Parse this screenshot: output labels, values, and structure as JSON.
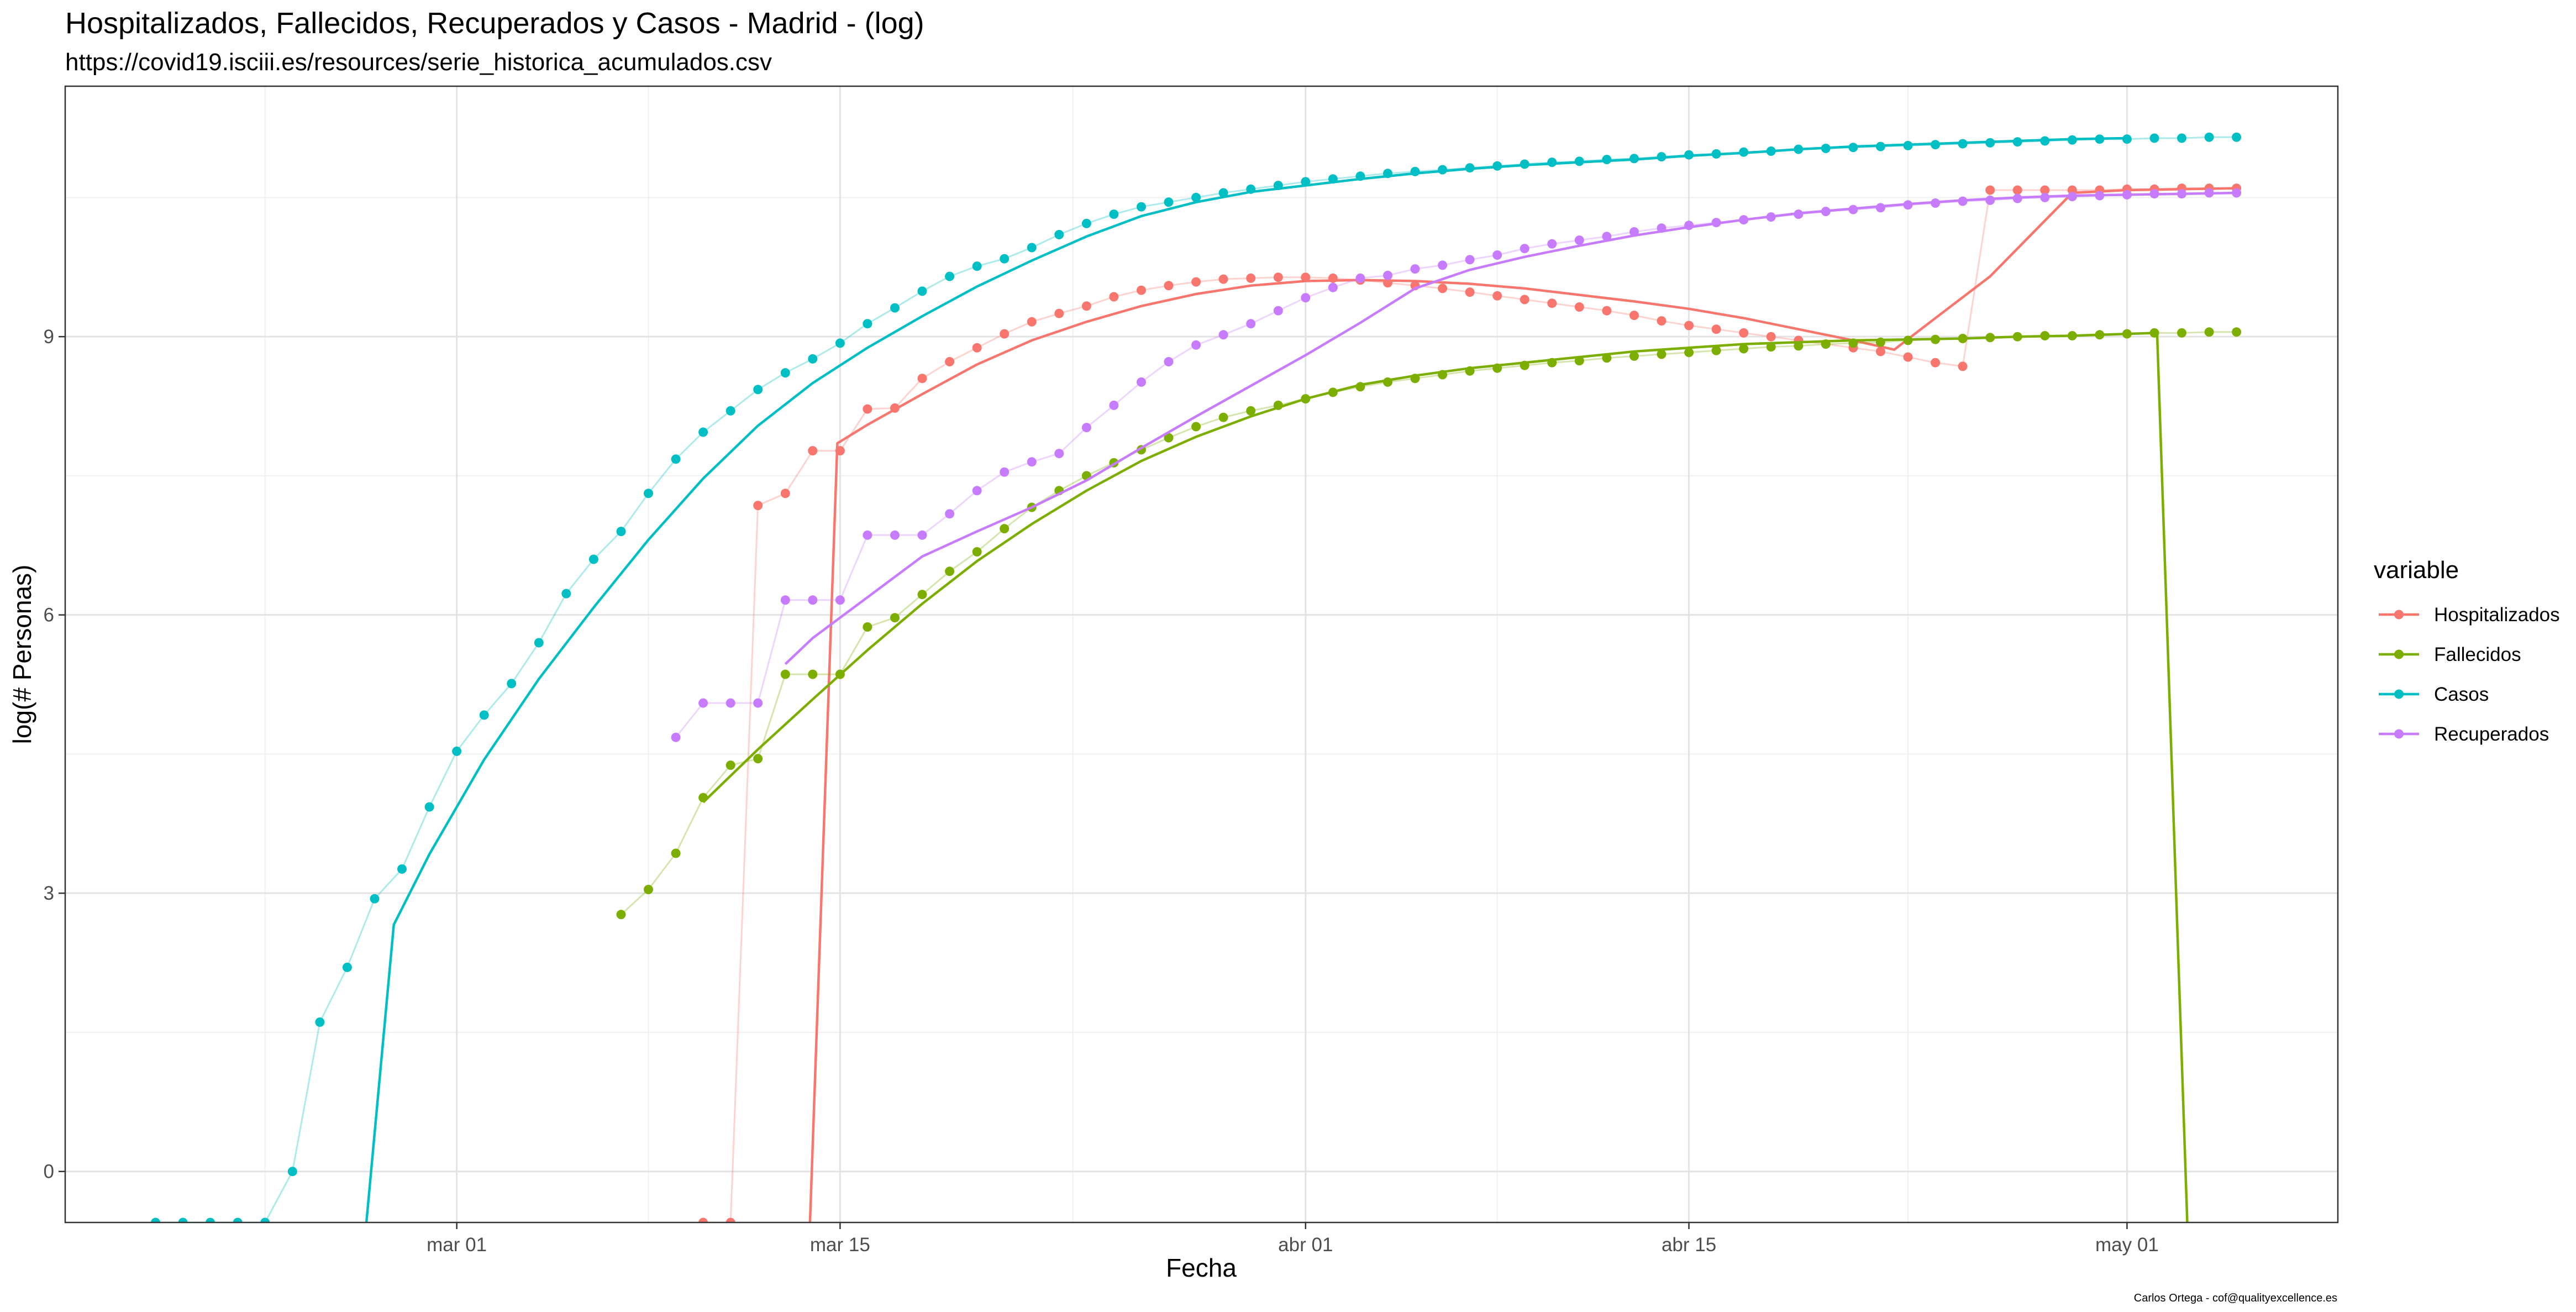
{
  "chart_data": {
    "type": "line",
    "title": "Hospitalizados, Fallecidos, Recuperados y Casos - Madrid - (log)",
    "subtitle": "https://covid19.isciii.es/resources/serie_historica_acumulados.csv",
    "xlabel": "Fecha",
    "ylabel": "log(# Personas)",
    "caption": "Carlos Ortega - cof@qualityexcellence.es",
    "x_ticks": [
      {
        "day": 29,
        "label": "mar 01"
      },
      {
        "day": 43,
        "label": "mar 15"
      },
      {
        "day": 60,
        "label": "abr 01"
      },
      {
        "day": 74,
        "label": "abr 15"
      },
      {
        "day": 90,
        "label": "may 01"
      }
    ],
    "y_ticks": [
      0,
      3,
      6,
      9
    ],
    "xlim_days": [
      14.7,
      97.7
    ],
    "ylim": [
      -0.55,
      11.7
    ],
    "legend": {
      "title": "variable",
      "position": "right"
    },
    "x_day_origin": "2020-01-31",
    "series": [
      {
        "name": "Hospitalizados",
        "color": "#F8766D",
        "x_days": [
          38,
          39,
          40,
          41,
          42,
          43,
          44,
          45,
          46,
          47,
          48,
          49,
          50,
          51,
          52,
          53,
          54,
          55,
          56,
          57,
          58,
          59,
          60,
          61,
          62,
          63,
          64,
          65,
          66,
          67,
          68,
          69,
          70,
          71,
          72,
          73,
          74,
          75,
          76,
          77,
          78,
          79,
          80,
          81,
          82,
          83,
          84,
          85,
          86,
          87,
          88,
          89,
          90,
          91,
          92,
          93,
          94
        ],
        "values": [
          -0.55,
          -0.55,
          7.18,
          7.31,
          7.77,
          7.77,
          8.22,
          8.23,
          8.55,
          8.73,
          8.88,
          9.03,
          9.16,
          9.25,
          9.33,
          9.43,
          9.5,
          9.55,
          9.59,
          9.62,
          9.63,
          9.64,
          9.64,
          9.63,
          9.61,
          9.58,
          9.55,
          9.52,
          9.48,
          9.44,
          9.4,
          9.36,
          9.32,
          9.28,
          9.23,
          9.17,
          9.12,
          9.08,
          9.04,
          9.0,
          8.96,
          8.92,
          8.88,
          8.84,
          8.78,
          8.72,
          8.68,
          10.58,
          10.58,
          10.58,
          10.58,
          10.58,
          10.59,
          10.59,
          10.6,
          10.6,
          10.6
        ],
        "smooth_x": [
          41.9,
          42.9,
          44,
          46,
          48,
          50,
          52,
          54,
          56,
          58,
          60,
          62,
          64,
          66,
          68,
          70,
          72,
          74,
          76,
          78,
          80,
          81.5,
          83,
          85,
          86.5,
          88,
          90,
          92,
          94
        ],
        "smooth_y": [
          -0.55,
          7.85,
          8.05,
          8.38,
          8.7,
          8.96,
          9.16,
          9.33,
          9.46,
          9.55,
          9.6,
          9.61,
          9.6,
          9.57,
          9.52,
          9.45,
          9.38,
          9.3,
          9.2,
          9.08,
          8.96,
          8.86,
          9.2,
          9.65,
          10.1,
          10.55,
          10.58,
          10.59,
          10.6
        ]
      },
      {
        "name": "Fallecidos",
        "color": "#7CAE00",
        "x_days": [
          35,
          36,
          37,
          38,
          39,
          40,
          41,
          42,
          43,
          44,
          45,
          46,
          47,
          48,
          49,
          50,
          51,
          52,
          53,
          54,
          55,
          56,
          57,
          58,
          59,
          60,
          61,
          62,
          63,
          64,
          65,
          66,
          67,
          68,
          69,
          70,
          71,
          72,
          73,
          74,
          75,
          76,
          77,
          78,
          79,
          80,
          81,
          82,
          83,
          84,
          85,
          86,
          87,
          88,
          89,
          90,
          91,
          92,
          93,
          94
        ],
        "values": [
          2.77,
          3.04,
          3.43,
          4.03,
          4.38,
          4.45,
          5.36,
          5.36,
          5.36,
          5.87,
          5.97,
          6.22,
          6.47,
          6.68,
          6.93,
          7.16,
          7.34,
          7.5,
          7.64,
          7.78,
          7.91,
          8.03,
          8.13,
          8.2,
          8.26,
          8.33,
          8.4,
          8.46,
          8.51,
          8.55,
          8.59,
          8.63,
          8.66,
          8.69,
          8.72,
          8.74,
          8.77,
          8.79,
          8.81,
          8.83,
          8.85,
          8.87,
          8.89,
          8.9,
          8.92,
          8.93,
          8.94,
          8.96,
          8.97,
          8.98,
          8.99,
          9.0,
          9.01,
          9.01,
          9.02,
          9.03,
          9.04,
          9.04,
          9.05,
          9.05
        ],
        "smooth_x": [
          38,
          40,
          42,
          44,
          46,
          48,
          50,
          52,
          54,
          56,
          58,
          60,
          62,
          64,
          66,
          68,
          70,
          72,
          74,
          76,
          78,
          80,
          82,
          84,
          86,
          88,
          90,
          91.1,
          92.2
        ],
        "smooth_y": [
          3.98,
          4.55,
          5.09,
          5.62,
          6.12,
          6.58,
          6.98,
          7.34,
          7.66,
          7.92,
          8.14,
          8.33,
          8.48,
          8.58,
          8.66,
          8.72,
          8.78,
          8.84,
          8.88,
          8.92,
          8.94,
          8.96,
          8.97,
          8.98,
          9.0,
          9.01,
          9.03,
          9.04,
          -0.55
        ]
      },
      {
        "name": "Casos",
        "color": "#00BFC4",
        "x_days": [
          18,
          19,
          20,
          21,
          22,
          23,
          24,
          25,
          26,
          27,
          28,
          29,
          30,
          31,
          32,
          33,
          34,
          35,
          36,
          37,
          38,
          39,
          40,
          41,
          42,
          43,
          44,
          45,
          46,
          47,
          48,
          49,
          50,
          51,
          52,
          53,
          54,
          55,
          56,
          57,
          58,
          59,
          60,
          61,
          62,
          63,
          64,
          65,
          66,
          67,
          68,
          69,
          70,
          71,
          72,
          73,
          74,
          75,
          76,
          77,
          78,
          79,
          80,
          81,
          82,
          83,
          84,
          85,
          86,
          87,
          88,
          89,
          90,
          91,
          92,
          93,
          94
        ],
        "values": [
          -0.55,
          -0.55,
          -0.55,
          -0.55,
          -0.55,
          0.0,
          1.61,
          2.2,
          2.94,
          3.26,
          3.93,
          4.53,
          4.92,
          5.26,
          5.7,
          6.23,
          6.6,
          6.9,
          7.31,
          7.68,
          7.97,
          8.2,
          8.43,
          8.61,
          8.76,
          8.93,
          9.14,
          9.31,
          9.49,
          9.65,
          9.76,
          9.84,
          9.96,
          10.1,
          10.22,
          10.32,
          10.4,
          10.45,
          10.5,
          10.55,
          10.59,
          10.63,
          10.67,
          10.7,
          10.73,
          10.76,
          10.78,
          10.8,
          10.82,
          10.84,
          10.86,
          10.88,
          10.89,
          10.91,
          10.92,
          10.94,
          10.96,
          10.97,
          10.99,
          11.0,
          11.02,
          11.03,
          11.04,
          11.05,
          11.06,
          11.07,
          11.08,
          11.09,
          11.1,
          11.11,
          11.12,
          11.13,
          11.13,
          11.14,
          11.14,
          11.15,
          11.15
        ],
        "smooth_x": [
          25.7,
          26.7,
          28,
          30,
          32,
          34,
          36,
          38,
          40,
          42,
          44,
          46,
          48,
          50,
          52,
          54,
          56,
          58,
          60,
          62,
          64,
          66,
          68,
          70,
          72,
          74,
          76,
          78,
          80,
          82,
          84,
          86,
          88,
          90
        ],
        "smooth_y": [
          -0.55,
          2.66,
          3.42,
          4.44,
          5.31,
          6.08,
          6.81,
          7.47,
          8.04,
          8.5,
          8.88,
          9.22,
          9.54,
          9.82,
          10.08,
          10.3,
          10.45,
          10.56,
          10.63,
          10.7,
          10.76,
          10.81,
          10.85,
          10.88,
          10.91,
          10.95,
          10.98,
          11.02,
          11.05,
          11.07,
          11.09,
          11.11,
          11.13,
          11.14
        ]
      },
      {
        "name": "Recuperados",
        "color": "#C77CFF",
        "x_days": [
          37,
          38,
          39,
          40,
          41,
          42,
          43,
          44,
          45,
          46,
          47,
          48,
          49,
          50,
          51,
          52,
          53,
          54,
          55,
          56,
          57,
          58,
          59,
          60,
          61,
          62,
          63,
          64,
          65,
          66,
          67,
          68,
          69,
          70,
          71,
          72,
          73,
          74,
          75,
          76,
          77,
          78,
          79,
          80,
          81,
          82,
          83,
          84,
          85,
          86,
          87,
          88,
          89,
          90,
          91,
          92,
          93,
          94
        ],
        "values": [
          4.68,
          5.05,
          5.05,
          5.05,
          6.16,
          6.16,
          6.16,
          6.86,
          6.86,
          6.86,
          7.09,
          7.34,
          7.54,
          7.65,
          7.74,
          8.02,
          8.26,
          8.51,
          8.73,
          8.91,
          9.02,
          9.14,
          9.28,
          9.42,
          9.53,
          9.63,
          9.66,
          9.73,
          9.77,
          9.83,
          9.88,
          9.95,
          10.0,
          10.04,
          10.08,
          10.13,
          10.17,
          10.2,
          10.23,
          10.26,
          10.29,
          10.32,
          10.35,
          10.37,
          10.39,
          10.42,
          10.44,
          10.46,
          10.47,
          10.49,
          10.5,
          10.51,
          10.52,
          10.53,
          10.54,
          10.54,
          10.55,
          10.55
        ],
        "smooth_x": [
          41,
          42,
          44,
          46,
          48,
          50,
          52,
          54,
          56,
          58,
          60,
          62,
          64,
          66,
          68,
          70,
          72,
          74,
          76,
          78,
          80,
          82,
          84,
          86,
          88,
          90,
          92,
          94
        ],
        "smooth_y": [
          5.47,
          5.75,
          6.19,
          6.63,
          6.9,
          7.16,
          7.45,
          7.8,
          8.14,
          8.47,
          8.8,
          9.15,
          9.52,
          9.72,
          9.86,
          9.98,
          10.09,
          10.18,
          10.26,
          10.33,
          10.38,
          10.43,
          10.47,
          10.5,
          10.52,
          10.53,
          10.54,
          10.55
        ]
      }
    ]
  }
}
